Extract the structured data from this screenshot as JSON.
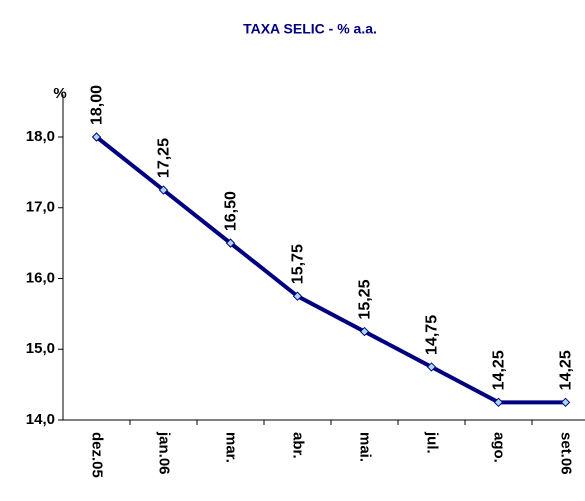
{
  "chart_data": {
    "type": "line",
    "title": "TAXA SELIC - % a.a.",
    "y_label": "%",
    "categories": [
      "dez.05",
      "jan.06",
      "mar.",
      "abr.",
      "mai.",
      "jul.",
      "ago.",
      "set.06"
    ],
    "series": [
      {
        "name": "TAXA SELIC",
        "color": "#000080",
        "values": [
          18,
          17.25,
          16.5,
          15.75,
          15.25,
          14.75,
          14.25,
          14.25
        ],
        "value_labels": [
          "18,00",
          "17,25",
          "16,50",
          "15,75",
          "15,25",
          "14,75",
          "14,25",
          "14,25"
        ]
      }
    ],
    "ylim": [
      14,
      18.6
    ],
    "yticks": [
      {
        "value": 14,
        "label": "14,0"
      },
      {
        "value": 15,
        "label": "15,0"
      },
      {
        "value": 16,
        "label": "16,0"
      },
      {
        "value": 17,
        "label": "17,0"
      },
      {
        "value": 18,
        "label": "18,0"
      }
    ],
    "grid": false
  }
}
